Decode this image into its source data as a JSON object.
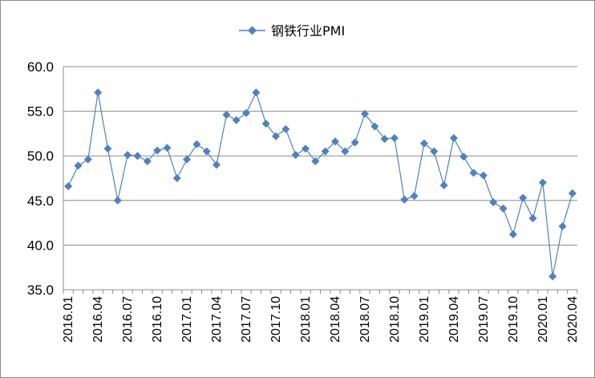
{
  "chart_data": {
    "type": "line",
    "title": "",
    "xlabel": "",
    "ylabel": "",
    "ylim": [
      35,
      60
    ],
    "yticks": [
      "35.0",
      "40.0",
      "45.0",
      "50.0",
      "55.0",
      "60.0"
    ],
    "grid": "horizontal",
    "legend_position": "top",
    "x": [
      "2016.01",
      "2016.02",
      "2016.03",
      "2016.04",
      "2016.05",
      "2016.06",
      "2016.07",
      "2016.08",
      "2016.09",
      "2016.10",
      "2016.11",
      "2016.12",
      "2017.01",
      "2017.02",
      "2017.03",
      "2017.04",
      "2017.05",
      "2017.06",
      "2017.07",
      "2017.08",
      "2017.09",
      "2017.10",
      "2017.11",
      "2017.12",
      "2018.01",
      "2018.02",
      "2018.03",
      "2018.04",
      "2018.05",
      "2018.06",
      "2018.07",
      "2018.08",
      "2018.09",
      "2018.10",
      "2018.11",
      "2018.12",
      "2019.01",
      "2019.02",
      "2019.03",
      "2019.04",
      "2019.05",
      "2019.06",
      "2019.07",
      "2019.08",
      "2019.09",
      "2019.10",
      "2019.11",
      "2019.12",
      "2020.01",
      "2020.02",
      "2020.03",
      "2020.04"
    ],
    "x_tick_labels": [
      "2016.01",
      "2016.04",
      "2016.07",
      "2016.10",
      "2017.01",
      "2017.04",
      "2017.07",
      "2017.10",
      "2018.01",
      "2018.04",
      "2018.07",
      "2018.10",
      "2019.01",
      "2019.04",
      "2019.07",
      "2019.10",
      "2020.01",
      "2020.04"
    ],
    "series": [
      {
        "name": "钢铁行业PMI",
        "color": "#4f81bd",
        "marker": "diamond",
        "values": [
          46.6,
          48.9,
          49.6,
          57.1,
          50.8,
          45.0,
          50.1,
          50.0,
          49.4,
          50.6,
          50.9,
          47.5,
          49.6,
          51.3,
          50.5,
          49.0,
          54.6,
          54.0,
          54.8,
          57.1,
          53.6,
          52.2,
          53.0,
          50.1,
          50.8,
          49.4,
          50.5,
          51.6,
          50.5,
          51.5,
          54.7,
          53.3,
          51.9,
          52.0,
          45.1,
          45.5,
          51.4,
          50.5,
          46.7,
          52.0,
          49.9,
          48.1,
          47.8,
          44.8,
          44.1,
          41.2,
          45.3,
          43.0,
          47.0,
          36.5,
          42.1,
          45.8
        ]
      }
    ]
  }
}
